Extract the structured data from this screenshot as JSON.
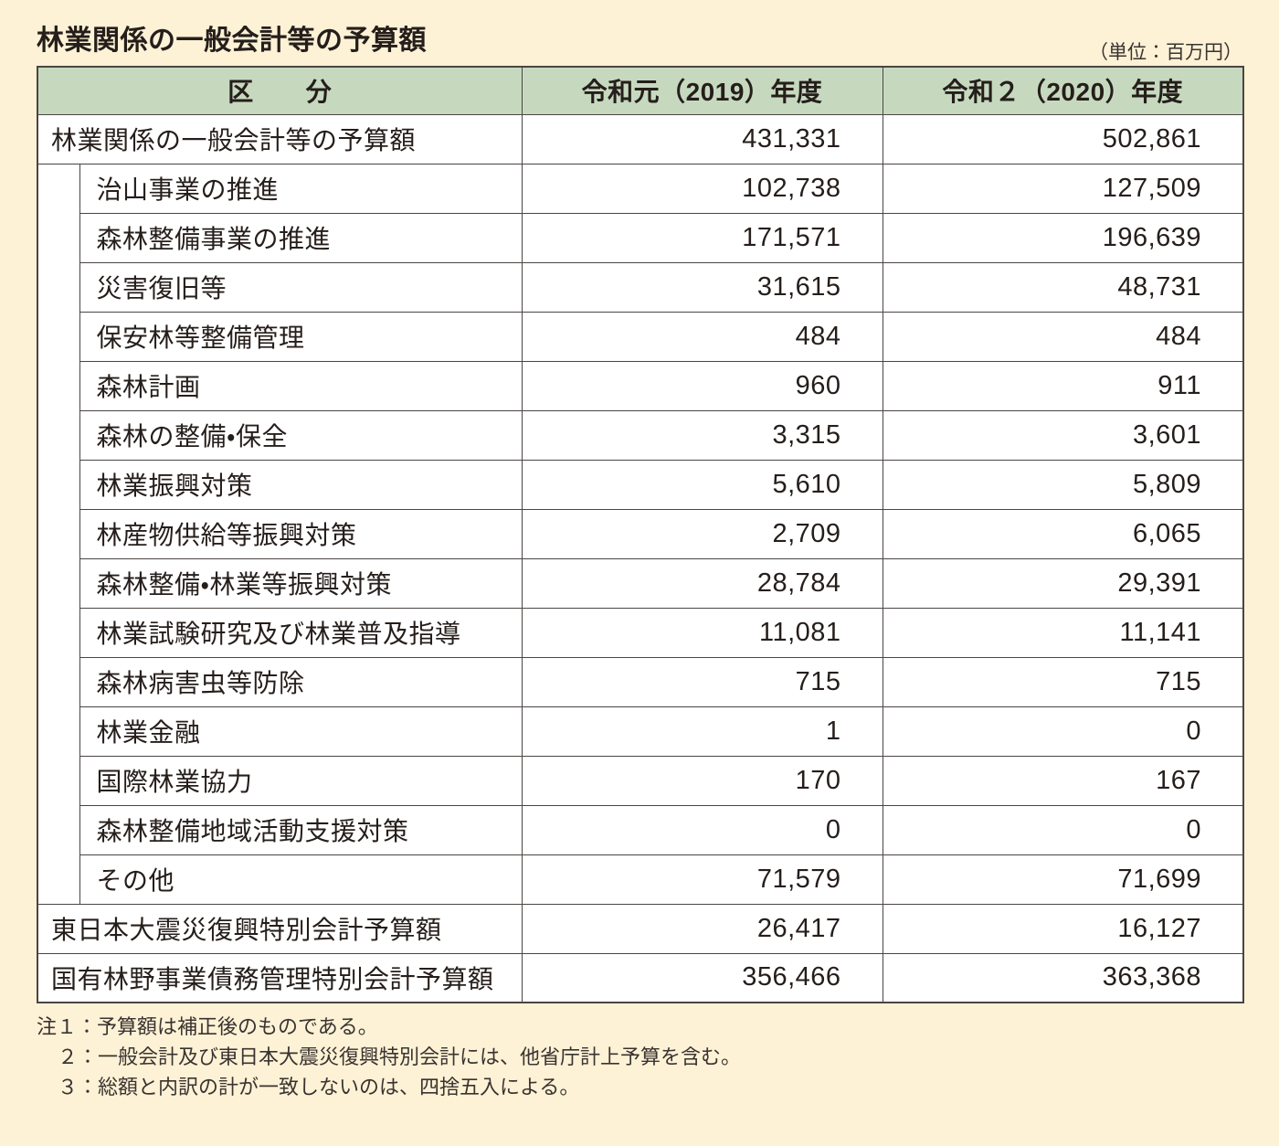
{
  "page": {
    "title": "林業関係の一般会計等の予算額",
    "unit_note": "（単位：百万円）"
  },
  "table": {
    "header": {
      "category": "区　　分",
      "fy2019": "令和元（2019）年度",
      "fy2020": "令和２（2020）年度"
    },
    "rows": [
      {
        "label": "林業関係の一般会計等の予算額",
        "indent": false,
        "fy2019": "431,331",
        "fy2020": "502,861"
      },
      {
        "label": "治山事業の推進",
        "indent": true,
        "fy2019": "102,738",
        "fy2020": "127,509"
      },
      {
        "label": "森林整備事業の推進",
        "indent": true,
        "fy2019": "171,571",
        "fy2020": "196,639"
      },
      {
        "label": "災害復旧等",
        "indent": true,
        "fy2019": "31,615",
        "fy2020": "48,731"
      },
      {
        "label": "保安林等整備管理",
        "indent": true,
        "fy2019": "484",
        "fy2020": "484"
      },
      {
        "label": "森林計画",
        "indent": true,
        "fy2019": "960",
        "fy2020": "911"
      },
      {
        "label": "森林の整備・保全",
        "indent": true,
        "fy2019": "3,315",
        "fy2020": "3,601"
      },
      {
        "label": "林業振興対策",
        "indent": true,
        "fy2019": "5,610",
        "fy2020": "5,809"
      },
      {
        "label": "林産物供給等振興対策",
        "indent": true,
        "fy2019": "2,709",
        "fy2020": "6,065"
      },
      {
        "label": "森林整備・林業等振興対策",
        "indent": true,
        "fy2019": "28,784",
        "fy2020": "29,391"
      },
      {
        "label": "林業試験研究及び林業普及指導",
        "indent": true,
        "fy2019": "11,081",
        "fy2020": "11,141"
      },
      {
        "label": "森林病害虫等防除",
        "indent": true,
        "fy2019": "715",
        "fy2020": "715"
      },
      {
        "label": "林業金融",
        "indent": true,
        "fy2019": "1",
        "fy2020": "0"
      },
      {
        "label": "国際林業協力",
        "indent": true,
        "fy2019": "170",
        "fy2020": "167"
      },
      {
        "label": "森林整備地域活動支援対策",
        "indent": true,
        "fy2019": "0",
        "fy2020": "0"
      },
      {
        "label": "その他",
        "indent": true,
        "fy2019": "71,579",
        "fy2020": "71,699"
      },
      {
        "label": "東日本大震災復興特別会計予算額",
        "indent": false,
        "fy2019": "26,417",
        "fy2020": "16,127"
      },
      {
        "label": "国有林野事業債務管理特別会計予算額",
        "indent": false,
        "fy2019": "356,466",
        "fy2020": "363,368"
      }
    ]
  },
  "notes": [
    "注１：予算額は補正後のものである。",
    "２：一般会計及び東日本大震災復興特別会計には、他省庁計上予算を含む。",
    "３：総額と内訳の計が一致しないのは、四捨五入による。"
  ],
  "colors": {
    "page_background": "#fdf2d6",
    "header_green": "#c6d9bf",
    "row_background": "#ffffff",
    "border": "#4a4543",
    "text": "#251e1b"
  }
}
